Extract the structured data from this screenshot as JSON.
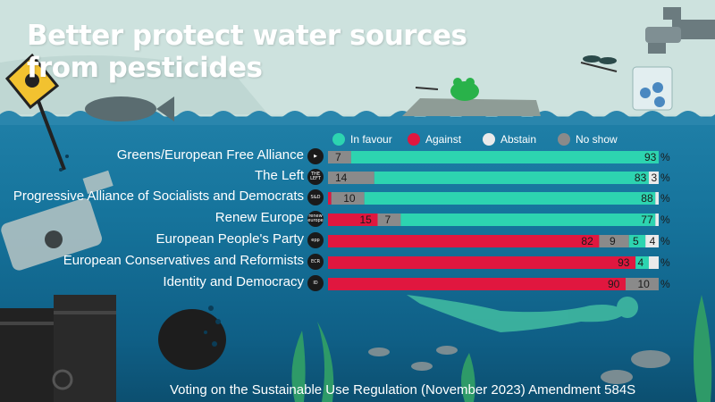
{
  "title_line1": "Better protect water sources",
  "title_line2": "from pesticides",
  "footer": "Voting on the Sustainable Use Regulation (November 2023) Amendment 584S",
  "colors": {
    "in_favour": "#2dd4b0",
    "against": "#e0173f",
    "abstain": "#eaeaea",
    "no_show": "#8a8a8a"
  },
  "legend": [
    {
      "label": "In favour",
      "color": "#2dd4b0"
    },
    {
      "label": "Against",
      "color": "#e0173f"
    },
    {
      "label": "Abstain",
      "color": "#eaeaea"
    },
    {
      "label": "No show",
      "color": "#8a8a8a"
    }
  ],
  "chart_data": {
    "type": "bar",
    "orientation": "horizontal-stacked",
    "unit": "%",
    "categories": [
      "Greens/European Free Alliance",
      "The Left",
      "Progressive Alliance of Socialists and Democrats",
      "Renew Europe",
      "European People's Party",
      "European Conservatives and Reformists",
      "Identity and Democracy"
    ],
    "logos": [
      "",
      "THE LEFT",
      "S&D",
      "renew europe",
      "epp",
      "ECR",
      "ID"
    ],
    "series": [
      {
        "name": "Against",
        "values": [
          0,
          0,
          1,
          15,
          82,
          93,
          90
        ]
      },
      {
        "name": "No show",
        "values": [
          7,
          14,
          10,
          7,
          9,
          0,
          10
        ]
      },
      {
        "name": "In favour",
        "values": [
          93,
          83,
          88,
          77,
          5,
          4,
          0
        ]
      },
      {
        "name": "Abstain",
        "values": [
          0,
          3,
          1,
          1,
          4,
          3,
          0
        ]
      }
    ],
    "labels": [
      {
        "Against": "",
        "No show": "7",
        "In favour": "93",
        "Abstain": ""
      },
      {
        "Against": "",
        "No show": "14",
        "In favour": "83",
        "Abstain": "3"
      },
      {
        "Against": "",
        "No show": "10",
        "In favour": "88",
        "Abstain": ""
      },
      {
        "Against": "15",
        "No show": "7",
        "In favour": "77",
        "Abstain": ""
      },
      {
        "Against": "82",
        "No show": "9",
        "In favour": "5",
        "Abstain": "4"
      },
      {
        "Against": "93",
        "No show": "",
        "In favour": "4",
        "Abstain": ""
      },
      {
        "Against": "90",
        "No show": "10",
        "In favour": "",
        "Abstain": ""
      }
    ],
    "xlim": [
      0,
      100
    ],
    "legend_position": "top"
  }
}
